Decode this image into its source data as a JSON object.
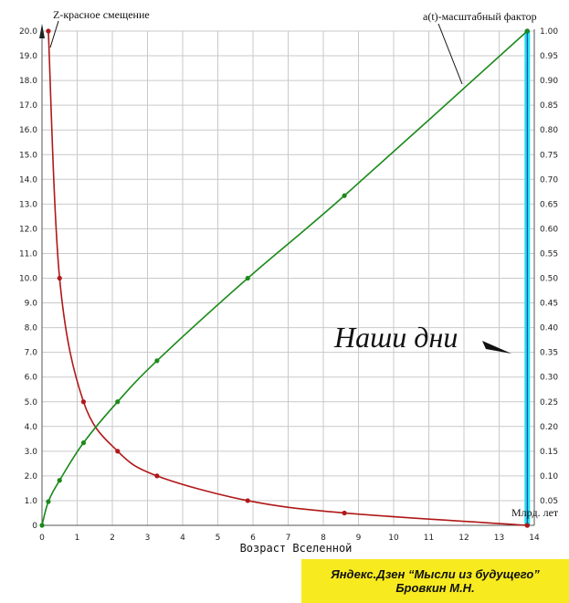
{
  "chart_data": {
    "type": "line",
    "xlabel": "Возраст Вселенной",
    "x_unit_label": "Млрд. лет",
    "xlim": [
      0,
      14
    ],
    "x_ticks": [
      "0",
      "1",
      "2",
      "3",
      "4",
      "5",
      "6",
      "7",
      "8",
      "9",
      "10",
      "11",
      "12",
      "13",
      "14"
    ],
    "ylim_left": [
      0,
      20
    ],
    "y_ticks_left": [
      "0",
      "1.0",
      "2.0",
      "3.0",
      "4.0",
      "5.0",
      "6.0",
      "7.0",
      "8.0",
      "9.0",
      "10.0",
      "11.0",
      "12.0",
      "13.0",
      "14.0",
      "15.0",
      "16.0",
      "17.0",
      "18.0",
      "19.0",
      "20.0"
    ],
    "ylim_right": [
      0,
      1
    ],
    "y_ticks_right": [
      "0.05",
      "0.10",
      "0.15",
      "0.20",
      "0.25",
      "0.30",
      "0.35",
      "0.40",
      "0.45",
      "0.50",
      "0.55",
      "0.60",
      "0.65",
      "0.70",
      "0.75",
      "0.80",
      "0.85",
      "0.90",
      "0.95",
      "1.00"
    ],
    "grid": true,
    "series": [
      {
        "name": "Z-красное смещение",
        "axis": "left",
        "color": "#b01818",
        "points": [
          [
            0.18,
            20
          ],
          [
            0.5,
            10
          ],
          [
            1.18,
            5
          ],
          [
            2.15,
            3
          ],
          [
            3.27,
            2
          ],
          [
            5.85,
            1
          ],
          [
            8.6,
            0.5
          ],
          [
            13.8,
            0
          ]
        ],
        "markers": [
          [
            0.18,
            20
          ],
          [
            0.5,
            10
          ],
          [
            1.18,
            5
          ],
          [
            2.15,
            3
          ],
          [
            3.27,
            2
          ],
          [
            5.85,
            1
          ],
          [
            8.6,
            0.5
          ],
          [
            13.8,
            0
          ]
        ]
      },
      {
        "name": "a(t)-масштабный фактор",
        "axis": "right",
        "color": "#1a8a1a",
        "points": [
          [
            0,
            0
          ],
          [
            0.18,
            0.048
          ],
          [
            0.5,
            0.091
          ],
          [
            1.18,
            0.167
          ],
          [
            2.15,
            0.25
          ],
          [
            3.27,
            0.333
          ],
          [
            5.85,
            0.5
          ],
          [
            8.6,
            0.667
          ],
          [
            13.8,
            1.0
          ]
        ],
        "markers": [
          [
            0,
            0
          ],
          [
            0.18,
            0.048
          ],
          [
            0.5,
            0.091
          ],
          [
            1.18,
            0.167
          ],
          [
            2.15,
            0.25
          ],
          [
            3.27,
            0.333
          ],
          [
            5.85,
            0.5
          ],
          [
            8.6,
            0.667
          ],
          [
            13.8,
            1.0
          ]
        ]
      }
    ],
    "today_line": {
      "x": 13.8,
      "color": "#22e0f0"
    },
    "annotations": {
      "z_label": "Z-красное смещение",
      "a_label": "a(t)-масштабный фактор",
      "today_label": "Наши дни"
    }
  },
  "credit": {
    "line1": "Яндекс.Дзен “Мысли из будущего”",
    "line2": "Бровкин М.Н."
  }
}
